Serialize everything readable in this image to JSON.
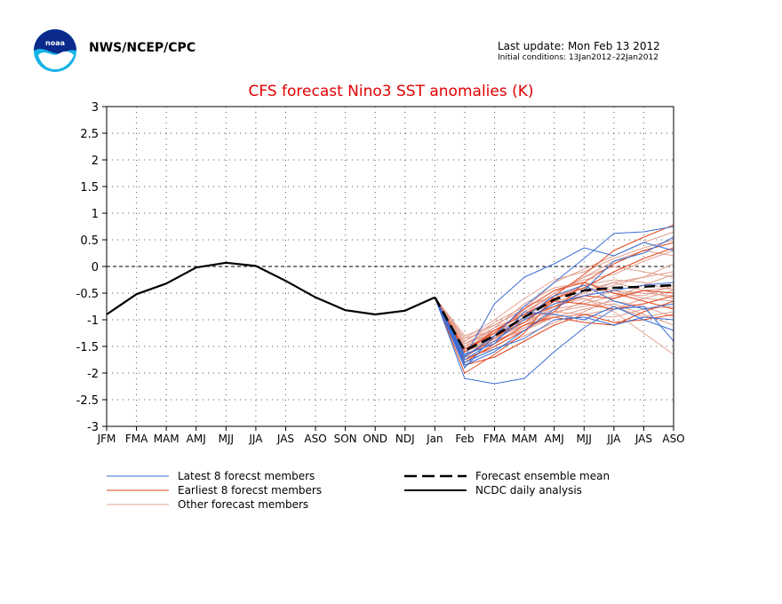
{
  "header": {
    "agency": "NWS/NCEP/CPC",
    "last_update": "Last update: Mon Feb 13 2012",
    "initial_conditions": "Initial conditions: 13Jan2012–22Jan2012"
  },
  "colors": {
    "latest": "#3a6ed6",
    "earliest": "#e2461c",
    "other": "#e3a192",
    "mean": "#000000",
    "observed": "#000000",
    "title": "#e00000"
  },
  "chart_data": {
    "type": "line",
    "title": "CFS forecast Nino3 SST anomalies (K)",
    "categories": [
      "JFM",
      "FMA",
      "MAM",
      "AMJ",
      "MJJ",
      "JJA",
      "JAS",
      "ASO",
      "SON",
      "OND",
      "NDJ",
      "Jan",
      "Feb",
      "FMA",
      "MAM",
      "AMJ",
      "MJJ",
      "JJA",
      "JAS",
      "ASO"
    ],
    "y_ticks": [
      "3",
      "2.5",
      "2",
      "1.5",
      "1",
      "0.5",
      "0",
      "-0.5",
      "-1",
      "-1.5",
      "-2",
      "-2.5",
      "-3"
    ],
    "ylim": [
      -3,
      3
    ],
    "grid": true,
    "legend": {
      "latest": "Latest 8 forecst members",
      "earliest": "Earliest 8 forecst members",
      "other": "Other forecast members",
      "mean": "Forecast ensemble mean",
      "observed": "NCDC daily analysis"
    },
    "observed": [
      -0.9,
      -0.52,
      -0.32,
      -0.02,
      0.07,
      0.01,
      -0.27,
      -0.58,
      -0.82,
      -0.9,
      -0.83,
      -0.58
    ],
    "ensemble_mean": [
      -0.58,
      -1.58,
      -1.3,
      -0.95,
      -0.62,
      -0.45,
      -0.4,
      -0.38,
      -0.35
    ],
    "latest_members": [
      [
        -0.58,
        -2.1,
        -2.2,
        -2.1,
        -1.6,
        -1.15,
        -0.8,
        -0.75,
        -1.4
      ],
      [
        -0.58,
        -1.9,
        -1.3,
        -0.75,
        -0.3,
        0.15,
        0.62,
        0.65,
        0.75
      ],
      [
        -0.58,
        -1.85,
        -1.6,
        -1.2,
        -0.8,
        -0.45,
        0.1,
        0.25,
        0.55
      ],
      [
        -0.58,
        -1.75,
        -1.4,
        -1.0,
        -0.7,
        -0.55,
        -0.45,
        -0.35,
        -0.3
      ],
      [
        -0.58,
        -1.7,
        -0.7,
        -0.2,
        0.05,
        0.35,
        0.2,
        0.45,
        0.3
      ],
      [
        -0.58,
        -1.8,
        -1.55,
        -1.35,
        -1.0,
        -0.95,
        -1.1,
        -0.95,
        -1.0
      ],
      [
        -0.58,
        -1.7,
        -1.3,
        -0.95,
        -0.55,
        -0.35,
        -0.65,
        -0.8,
        -0.7
      ],
      [
        -0.58,
        -1.65,
        -1.45,
        -0.85,
        -0.9,
        -1.0,
        -0.75,
        -1.0,
        -1.2
      ]
    ],
    "earliest_members": [
      [
        -0.58,
        -2.0,
        -1.65,
        -1.25,
        -0.55,
        -0.15,
        0.3,
        0.55,
        0.78
      ],
      [
        -0.58,
        -1.75,
        -1.5,
        -1.2,
        -0.85,
        -0.3,
        0.05,
        0.3,
        0.45
      ],
      [
        -0.58,
        -1.7,
        -1.35,
        -0.95,
        -0.75,
        -0.55,
        -0.6,
        -0.45,
        -0.5
      ],
      [
        -0.58,
        -1.85,
        -1.7,
        -1.4,
        -1.1,
        -0.9,
        -1.05,
        -1.0,
        -0.9
      ],
      [
        -0.58,
        -1.6,
        -1.2,
        -0.9,
        -0.6,
        -0.4,
        -0.1,
        0.15,
        0.35
      ],
      [
        -0.58,
        -1.8,
        -1.45,
        -1.1,
        -0.95,
        -1.05,
        -1.1,
        -0.85,
        -0.65
      ],
      [
        -0.58,
        -1.7,
        -1.3,
        -1.05,
        -0.65,
        -0.7,
        -0.8,
        -0.7,
        -0.55
      ],
      [
        -0.58,
        -1.55,
        -1.25,
        -0.8,
        -0.45,
        -0.3,
        -0.5,
        -0.65,
        -0.8
      ]
    ],
    "other_members": [
      [
        -0.58,
        -1.3,
        -1.1,
        -0.8,
        -0.3,
        -0.05,
        0.2,
        0.45,
        0.65
      ],
      [
        -0.58,
        -1.35,
        -1.2,
        -0.9,
        -0.5,
        -0.2,
        0.1,
        0.3,
        0.2
      ],
      [
        -0.58,
        -1.5,
        -1.3,
        -1.0,
        -0.7,
        -0.5,
        -0.3,
        -0.2,
        -0.1
      ],
      [
        -0.58,
        -1.45,
        -1.15,
        -0.7,
        -0.4,
        -0.3,
        -0.45,
        -0.6,
        -0.65
      ],
      [
        -0.58,
        -1.65,
        -1.4,
        -1.2,
        -0.95,
        -0.8,
        -0.7,
        -0.9,
        -1.1
      ],
      [
        -0.58,
        -1.4,
        -1.05,
        -0.75,
        -0.55,
        -0.6,
        -0.85,
        -1.25,
        -1.65
      ],
      [
        -0.58,
        -1.55,
        -1.35,
        -1.05,
        -0.8,
        -0.7,
        -0.55,
        -0.45,
        -0.4
      ],
      [
        -0.58,
        -1.6,
        -1.25,
        -0.85,
        -0.5,
        -0.2,
        0.0,
        -0.1,
        -0.2
      ],
      [
        -0.58,
        -1.5,
        -1.3,
        -1.1,
        -0.85,
        -0.9,
        -0.95,
        -0.8,
        -0.75
      ],
      [
        -0.58,
        -1.7,
        -1.55,
        -1.3,
        -1.05,
        -0.85,
        -0.6,
        -0.35,
        -0.15
      ],
      [
        -0.58,
        -1.45,
        -1.25,
        -0.95,
        -0.6,
        -0.35,
        -0.25,
        -0.3,
        -0.45
      ],
      [
        -0.58,
        -1.55,
        -1.2,
        -1.0,
        -0.75,
        -0.6,
        -0.75,
        -0.95,
        -0.85
      ],
      [
        -0.58,
        -1.35,
        -1.0,
        -0.6,
        -0.25,
        -0.1,
        0.15,
        0.35,
        0.5
      ],
      [
        -0.58,
        -1.65,
        -1.45,
        -1.15,
        -0.9,
        -0.65,
        -0.45,
        -0.5,
        -0.55
      ],
      [
        -0.58,
        -1.5,
        -1.15,
        -0.9,
        -0.65,
        -0.55,
        -0.35,
        -0.2,
        0.05
      ],
      [
        -0.58,
        -1.6,
        -1.35,
        -1.1,
        -0.75,
        -0.45,
        -0.3,
        -0.45,
        -0.6
      ],
      [
        -0.58,
        -1.4,
        -1.1,
        -0.8,
        -0.45,
        -0.25,
        -0.15,
        0.1,
        0.3
      ],
      [
        -0.58,
        -1.55,
        -1.3,
        -1.0,
        -0.85,
        -0.75,
        -0.65,
        -0.75,
        -0.95
      ],
      [
        -0.58,
        -1.45,
        -1.2,
        -0.85,
        -0.55,
        -0.4,
        -0.5,
        -0.55,
        -0.35
      ],
      [
        -0.58,
        -1.6,
        -1.4,
        -1.15,
        -0.95,
        -0.9,
        -0.8,
        -0.6,
        -0.45
      ]
    ]
  }
}
